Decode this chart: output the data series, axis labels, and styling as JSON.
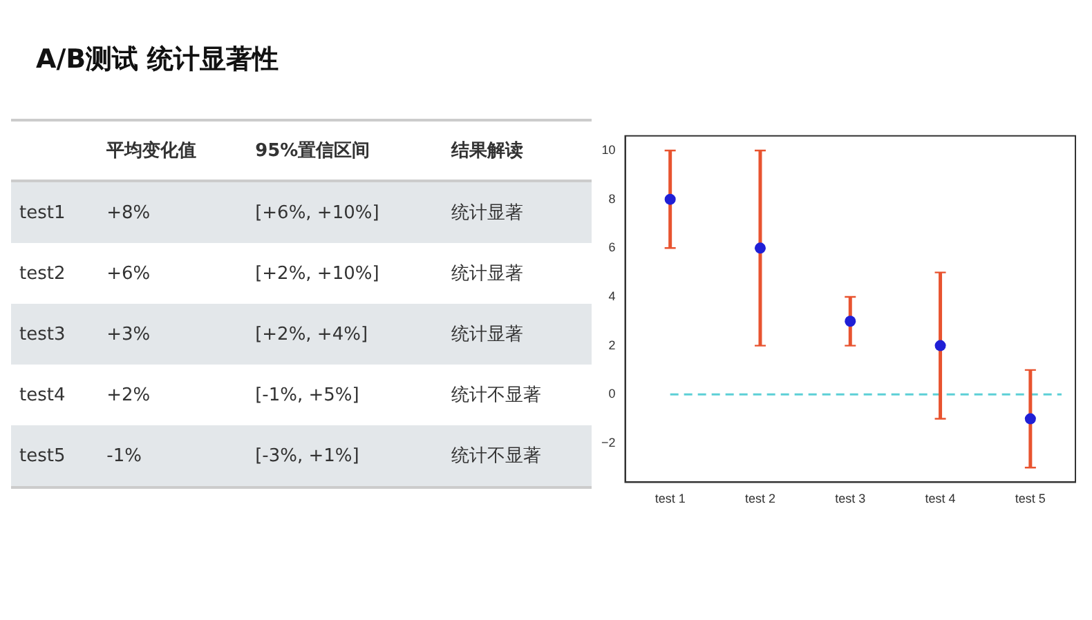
{
  "chart_data": [
    {
      "type": "other",
      "title": "A/B测试 统计显著性",
      "categories": [
        null,
        "平均变化值",
        "95%置信区间",
        "结果解读"
      ],
      "y_categories": [
        "test1",
        "test2",
        "test3",
        "test4",
        "test5"
      ],
      "cell_labels": [
        [
          "+8%",
          "[+6%, +10%]",
          "统计显著"
        ],
        [
          "+6%",
          "[+2%, +10%]",
          "统计显著"
        ],
        [
          "+3%",
          "[+2%, +4%]",
          "统计显著"
        ],
        [
          "+2%",
          "[-1%, +5%]",
          "统计不显著"
        ],
        [
          "-1%",
          "[-3%, +1%]",
          "统计不显著"
        ]
      ]
    },
    {
      "type": "scatter",
      "categories": [
        "test 1",
        "test 2",
        "test 3",
        "test 4",
        "test 5"
      ],
      "series": [
        {
          "color": "#1f1fd6",
          "values": [
            8,
            6,
            3,
            2,
            -1
          ],
          "errors": [
            [
              6,
              10
            ],
            [
              2,
              10
            ],
            [
              2,
              4
            ],
            [
              -1,
              5
            ],
            [
              -3,
              1
            ]
          ]
        }
      ],
      "ylim": [
        -3.6,
        10.6
      ],
      "yticks": [
        -2,
        0,
        2,
        4,
        6,
        8,
        10
      ],
      "marker": "circle",
      "grid": false,
      "legend": false,
      "ref_lines": [
        {
          "axis": "y",
          "value": 0,
          "color": "#5ccfd6",
          "line_style": "dashed"
        }
      ]
    }
  ]
}
